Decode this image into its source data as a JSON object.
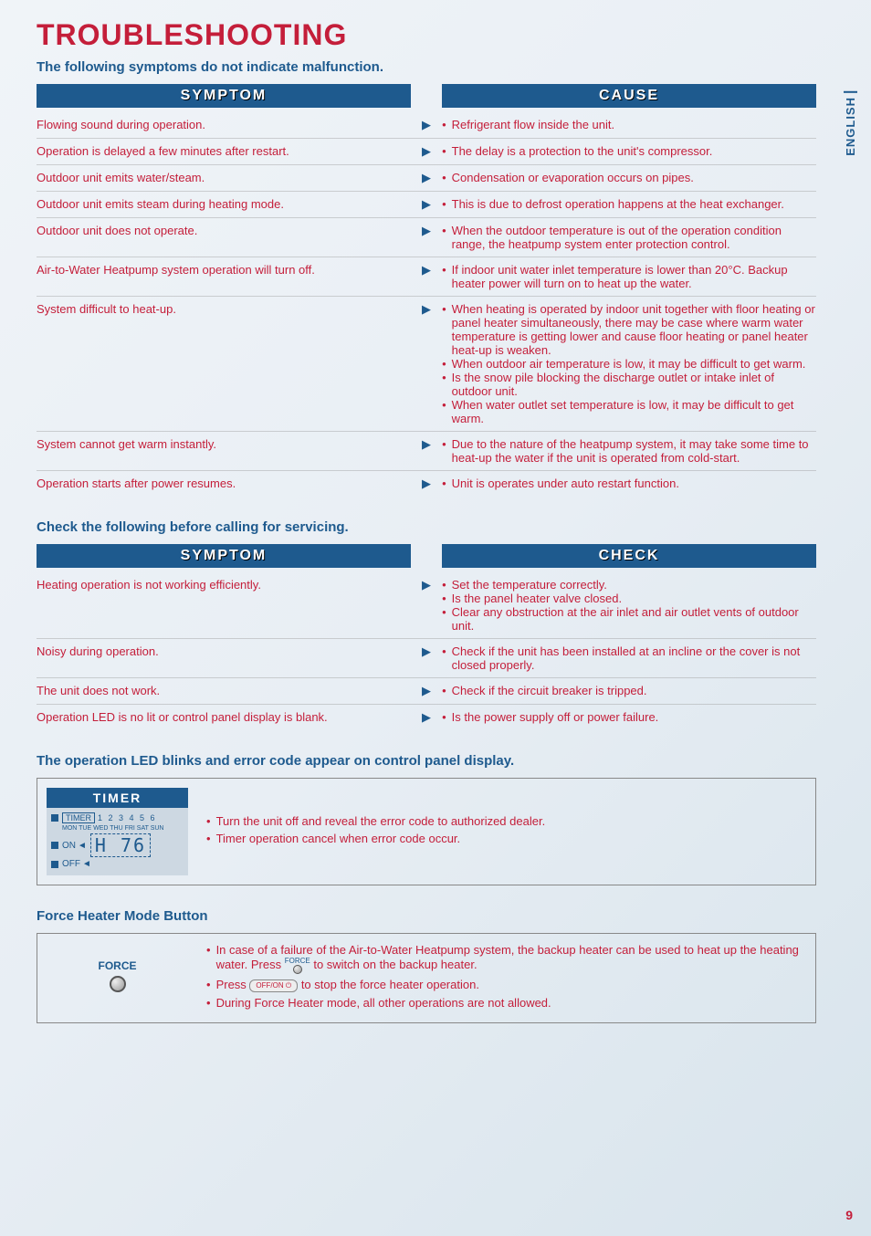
{
  "page": {
    "title": "TROUBLESHOOTING",
    "subtitle": "The following symptoms do not indicate malfunction.",
    "language_tab": "ENGLISH",
    "page_number": "9"
  },
  "table1": {
    "header_left": "SYMPTOM",
    "header_right": "CAUSE",
    "rows": [
      {
        "symptom": "Flowing sound during operation.",
        "causes": [
          "Refrigerant flow inside the unit."
        ]
      },
      {
        "symptom": "Operation is delayed a few minutes after restart.",
        "causes": [
          "The delay is a protection to the unit's compressor."
        ]
      },
      {
        "symptom": "Outdoor unit emits water/steam.",
        "causes": [
          "Condensation or evaporation occurs on pipes."
        ]
      },
      {
        "symptom": "Outdoor unit emits steam during heating mode.",
        "causes": [
          "This is due to defrost operation happens at the heat exchanger."
        ]
      },
      {
        "symptom": "Outdoor unit does not operate.",
        "causes": [
          "When the outdoor temperature is out of the operation condition range, the heatpump system enter protection control."
        ]
      },
      {
        "symptom": "Air-to-Water Heatpump system operation will turn off.",
        "causes": [
          "If indoor unit water inlet temperature is lower than 20°C. Backup heater power will turn on to heat up the water."
        ]
      },
      {
        "symptom": "System difficult to heat-up.",
        "causes": [
          "When heating is operated by indoor unit together with floor heating or panel heater simultaneously, there may be case where warm water temperature is getting lower and cause floor heating or panel heater heat-up is weaken.",
          "When outdoor air temperature is low, it may be difficult to get warm.",
          "Is the snow pile blocking the discharge outlet or intake inlet of outdoor unit.",
          "When water outlet set temperature is low, it may be difficult to get warm."
        ]
      },
      {
        "symptom": "System cannot get warm instantly.",
        "causes": [
          "Due to the nature of the heatpump system, it may take some time to heat-up the water if the unit is operated from cold-start."
        ]
      },
      {
        "symptom": "Operation starts after power resumes.",
        "causes": [
          "Unit is operates under auto restart function."
        ]
      }
    ]
  },
  "section2_title": "Check the following before calling for servicing.",
  "table2": {
    "header_left": "SYMPTOM",
    "header_right": "CHECK",
    "rows": [
      {
        "symptom": "Heating operation is not working efficiently.",
        "causes": [
          "Set the temperature correctly.",
          "Is the panel heater valve closed.",
          "Clear any obstruction at the air inlet and air outlet vents of outdoor unit."
        ]
      },
      {
        "symptom": "Noisy during operation.",
        "causes": [
          "Check if the unit has been installed at an incline or the cover is not closed properly."
        ]
      },
      {
        "symptom": "The unit does not work.",
        "causes": [
          "Check if the circuit breaker is tripped."
        ]
      },
      {
        "symptom": "Operation LED is no lit or control panel display is blank.",
        "causes": [
          "Is the power supply off or power failure."
        ]
      }
    ]
  },
  "led_section": {
    "title": "The operation LED blinks and error code appear on control panel display.",
    "timer": {
      "header": "TIMER",
      "label": "TIMER",
      "nums": "1 2 3 4 5 6",
      "days": "MON TUE WED THU FRI SAT SUN",
      "on": "ON",
      "off": "OFF",
      "code": "H 76"
    },
    "bullets": [
      "Turn the unit off and reveal the error code to authorized dealer.",
      "Timer operation cancel when error code occur."
    ]
  },
  "force_section": {
    "title": "Force Heater Mode Button",
    "button_label": "FORCE",
    "bullets": {
      "b1_part1": "In case of a failure of the Air-to-Water Heatpump system, the backup heater can be used to heat up the heating water. Press ",
      "b1_force": "FORCE",
      "b1_part2": " to switch on the backup heater.",
      "b2_part1": "Press ",
      "b2_offon": "OFF/ON ⏻",
      "b2_part2": " to stop the force heater operation.",
      "b3": "During Force Heater mode, all other operations are not allowed."
    }
  }
}
